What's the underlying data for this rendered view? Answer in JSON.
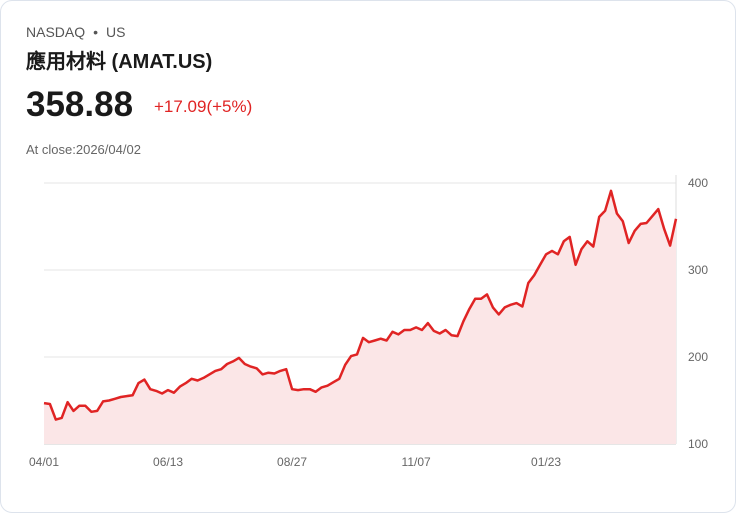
{
  "header": {
    "exchange": "NASDAQ",
    "separator": "•",
    "market": "US",
    "title": "應用材料 (AMAT.US)",
    "price": "358.88",
    "change": "+17.09(+5%)",
    "close_label": "At close:2026/04/02"
  },
  "colors": {
    "line": "#e02424",
    "fill": "#fbe6e7",
    "grid": "#e6e6e6"
  },
  "chart_data": {
    "type": "area",
    "title": "應用材料 (AMAT.US)",
    "xlabel": "",
    "ylabel": "",
    "ylim": [
      100,
      400
    ],
    "yticks": [
      "100",
      "200",
      "300",
      "400"
    ],
    "xticks": [
      "04/01",
      "06/13",
      "08/27",
      "11/07",
      "01/23"
    ],
    "xtick_index": [
      0,
      21,
      42,
      63,
      85
    ],
    "grid": true,
    "values": [
      147,
      146,
      128,
      130,
      148,
      138,
      144,
      144,
      137,
      138,
      149,
      150,
      152,
      154,
      155,
      156,
      170,
      174,
      163,
      161,
      158,
      162,
      159,
      166,
      170,
      175,
      173,
      176,
      180,
      184,
      186,
      192,
      195,
      199,
      192,
      189,
      187,
      180,
      182,
      181,
      184,
      186,
      163,
      162,
      163,
      163,
      160,
      165,
      167,
      171,
      175,
      191,
      201,
      203,
      222,
      217,
      219,
      221,
      219,
      229,
      226,
      231,
      231,
      234,
      231,
      239,
      230,
      227,
      231,
      225,
      224,
      241,
      255,
      267,
      267,
      272,
      257,
      249,
      257,
      260,
      262,
      258,
      285,
      294,
      306,
      318,
      322,
      318,
      333,
      338,
      306,
      324,
      333,
      327,
      361,
      368,
      391,
      365,
      356,
      331,
      345,
      353,
      354,
      362,
      370,
      347,
      328,
      358.88
    ]
  }
}
